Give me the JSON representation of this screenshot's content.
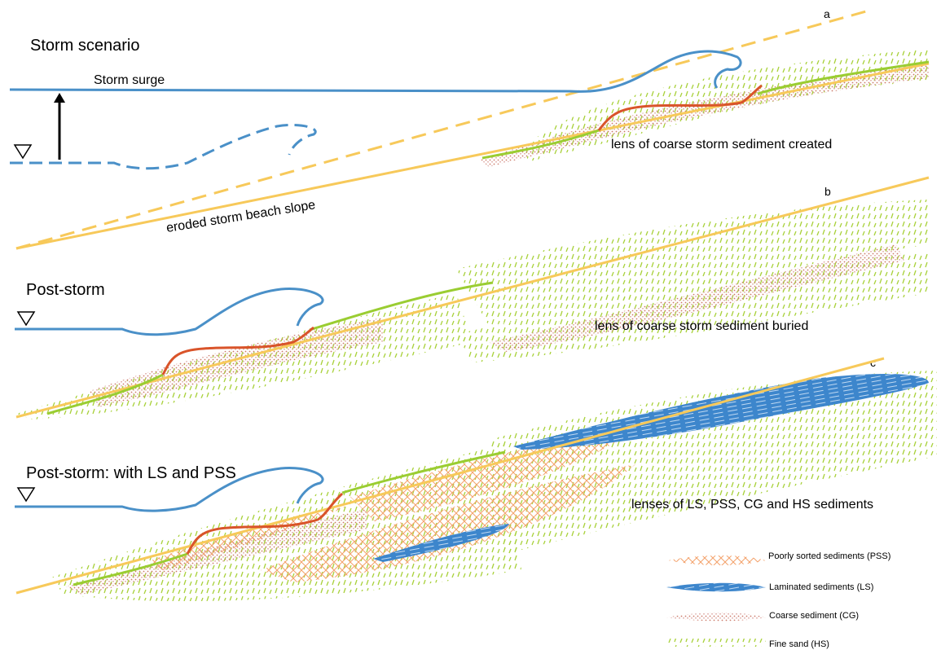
{
  "panels": {
    "a": {
      "letter": "a",
      "title": "Storm scenario",
      "surge_label": "Storm surge",
      "slope_label": "eroded storm beach slope",
      "lens_label": "lens of coarse storm sediment created"
    },
    "b": {
      "letter": "b",
      "title": "Post-storm",
      "lens_label": "lens of coarse storm sediment buried"
    },
    "c": {
      "letter": "c",
      "title": "Post-storm: with LS and PSS",
      "lens_label": "lenses of LS, PSS, CG and HS sediments"
    }
  },
  "legend": {
    "pss": "Poorly sorted sediments (PSS)",
    "ls": "Laminated sediments (LS)",
    "cg": "Coarse sediment (CG)",
    "hs": "Fine sand (HS)"
  },
  "colors": {
    "water": "#4a90c8",
    "beach": "#f7c95a",
    "coarse_line": "#d9542a",
    "fine_line": "#9acd32",
    "pss": "#f4a26b",
    "ls": "#2f78c4",
    "cg": "#cc7a6a",
    "hs": "#a8d13a"
  },
  "icons": {
    "water_level": "water-level-triangle-icon",
    "surge_arrow": "arrow-up-icon"
  }
}
